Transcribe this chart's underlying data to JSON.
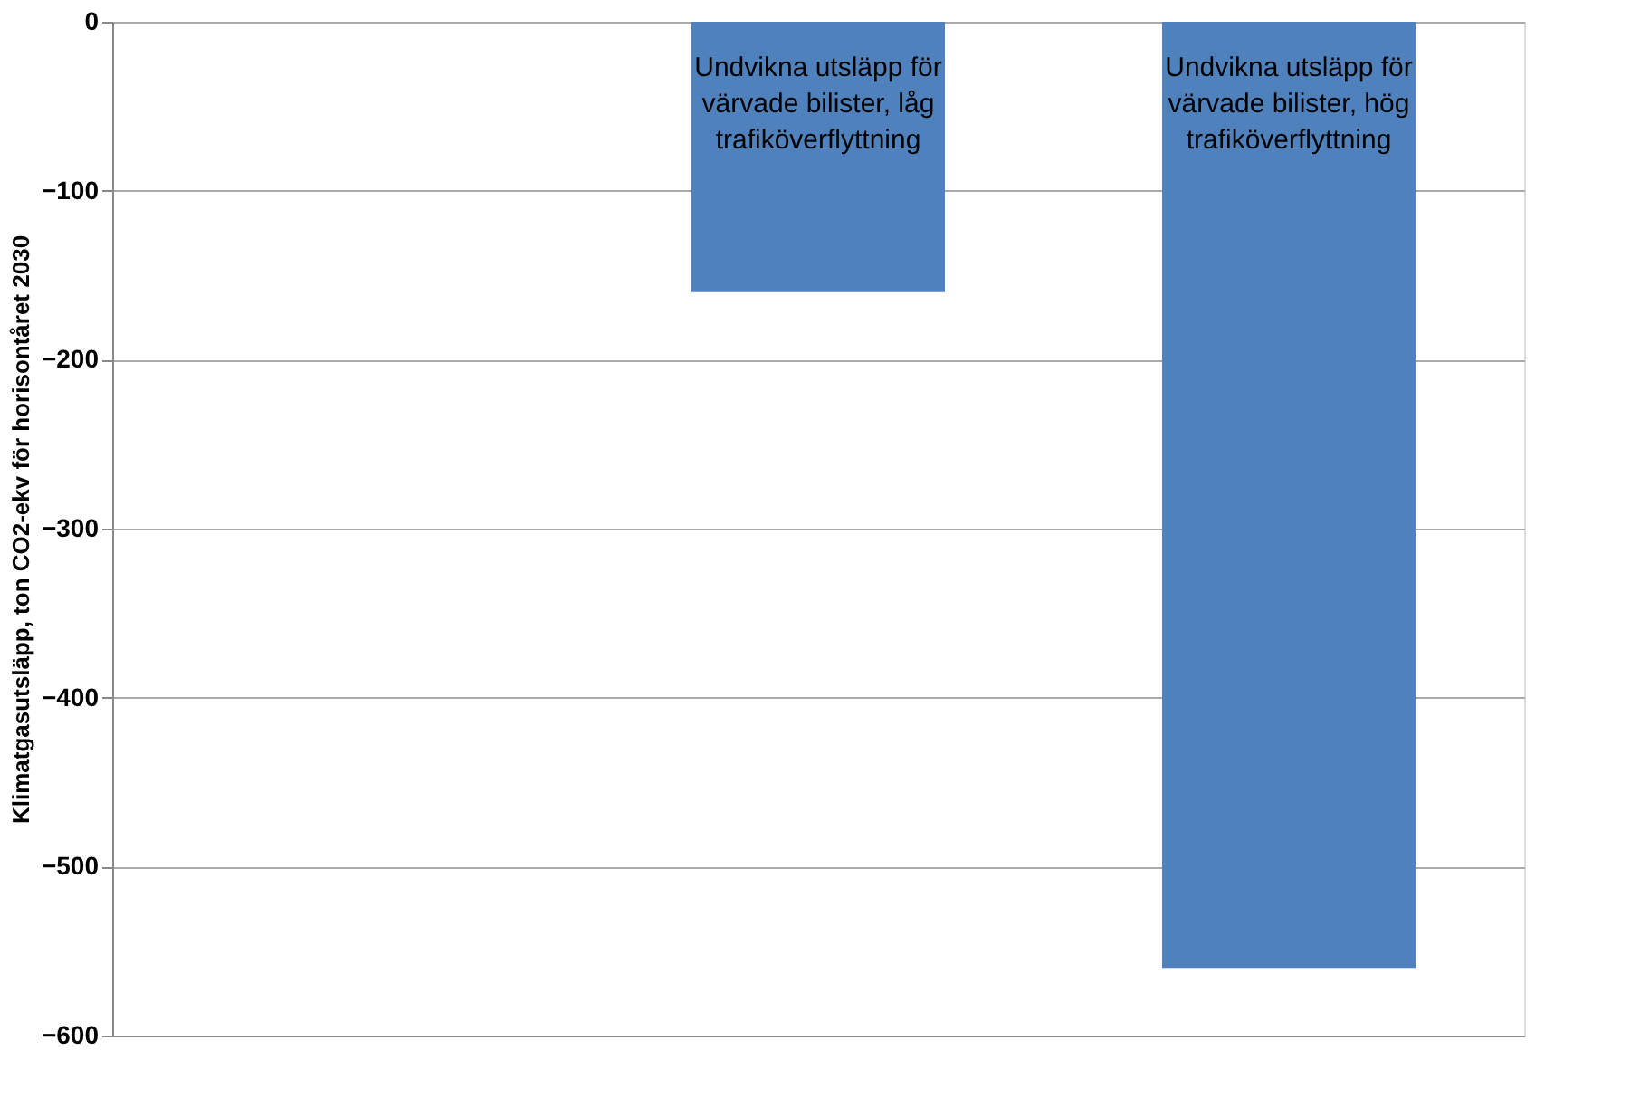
{
  "chart_data": {
    "type": "bar",
    "ylabel": "Klimatgasutsläpp, ton CO2-ekv för horisontåret 2030",
    "categories": [
      null,
      "Undvikna utsläpp för värvade bilister, låg trafiköverflyttning",
      "Undvikna utsläpp för värvade bilister, hög trafiköverflyttning"
    ],
    "values": [
      null,
      -160,
      -560
    ],
    "color": "#4f81bd",
    "ylim": [
      -600,
      0
    ],
    "yticks": [
      0,
      -100,
      -200,
      -300,
      -400,
      -500,
      -600
    ],
    "grid": "y"
  }
}
